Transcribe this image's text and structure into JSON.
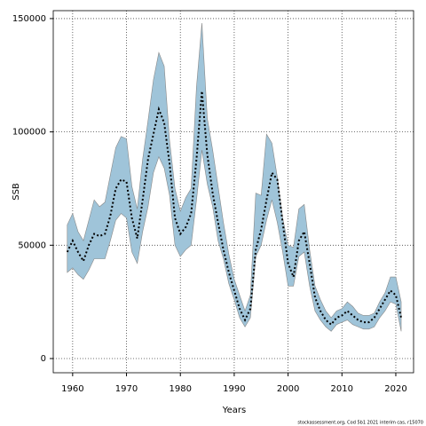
{
  "chart_data": {
    "type": "band-line",
    "x_label": "Years",
    "y_label": "SSB",
    "footer": "stockassessment.org, Cod 5b1 2021 interim cas, r15070",
    "x": [
      1959,
      1960,
      1961,
      1962,
      1963,
      1964,
      1965,
      1966,
      1967,
      1968,
      1969,
      1970,
      1971,
      1972,
      1973,
      1974,
      1975,
      1976,
      1977,
      1978,
      1979,
      1980,
      1981,
      1982,
      1983,
      1984,
      1985,
      1986,
      1987,
      1988,
      1989,
      1990,
      1991,
      1992,
      1993,
      1994,
      1995,
      1996,
      1997,
      1998,
      1999,
      2000,
      2001,
      2002,
      2003,
      2004,
      2005,
      2006,
      2007,
      2008,
      2009,
      2010,
      2011,
      2012,
      2013,
      2014,
      2015,
      2016,
      2017,
      2018,
      2019,
      2020,
      2021
    ],
    "values": [
      47000,
      52000,
      47000,
      43000,
      50000,
      55000,
      54000,
      55000,
      63000,
      75000,
      79000,
      78000,
      62000,
      53000,
      70000,
      88000,
      99000,
      110000,
      104000,
      86000,
      62000,
      55000,
      58000,
      64000,
      88000,
      118000,
      90000,
      73000,
      60000,
      48000,
      38000,
      30000,
      22000,
      17000,
      22000,
      48000,
      57000,
      70000,
      82000,
      79000,
      60000,
      42000,
      36000,
      52000,
      56000,
      42000,
      27000,
      21000,
      17000,
      15000,
      18000,
      19000,
      21000,
      19000,
      17000,
      16000,
      16000,
      18000,
      22000,
      26000,
      30000,
      28000,
      18000
    ],
    "lower": [
      38000,
      40000,
      37000,
      35000,
      39000,
      44000,
      44000,
      44000,
      52000,
      61000,
      64000,
      62000,
      47000,
      42000,
      56000,
      67000,
      82000,
      89000,
      84000,
      72000,
      50000,
      45000,
      48000,
      50000,
      70000,
      92000,
      77000,
      67000,
      52000,
      44000,
      33000,
      26000,
      18000,
      14000,
      18000,
      45000,
      50000,
      61000,
      70000,
      60000,
      47000,
      32000,
      32000,
      45000,
      47000,
      32000,
      21000,
      17000,
      14000,
      12000,
      15000,
      16000,
      17000,
      15000,
      14000,
      13000,
      13000,
      14000,
      18000,
      21000,
      25000,
      24000,
      12000
    ],
    "upper": [
      59000,
      64000,
      56000,
      52000,
      61000,
      70000,
      67000,
      69000,
      81000,
      93000,
      98000,
      97000,
      76000,
      66000,
      88000,
      105000,
      123000,
      135000,
      129000,
      96000,
      75000,
      65000,
      71000,
      75000,
      120000,
      148000,
      106000,
      92000,
      76000,
      60000,
      46000,
      35000,
      28000,
      21000,
      28000,
      73000,
      72000,
      99000,
      95000,
      80000,
      62000,
      50000,
      49000,
      66000,
      68000,
      48000,
      32000,
      26000,
      21000,
      18000,
      21000,
      22000,
      25000,
      23000,
      20000,
      19000,
      19000,
      20000,
      25000,
      29000,
      36000,
      36000,
      25000
    ],
    "band_color": "#9fc4d9",
    "line_color": "#000000",
    "xlim": [
      1956.4,
      2023.3
    ],
    "ylim": [
      -6270,
      153500
    ],
    "xticks": [
      1960,
      1970,
      1980,
      1990,
      2000,
      2010,
      2020
    ],
    "yticks": [
      0,
      50000,
      100000,
      150000
    ],
    "grid": true
  }
}
